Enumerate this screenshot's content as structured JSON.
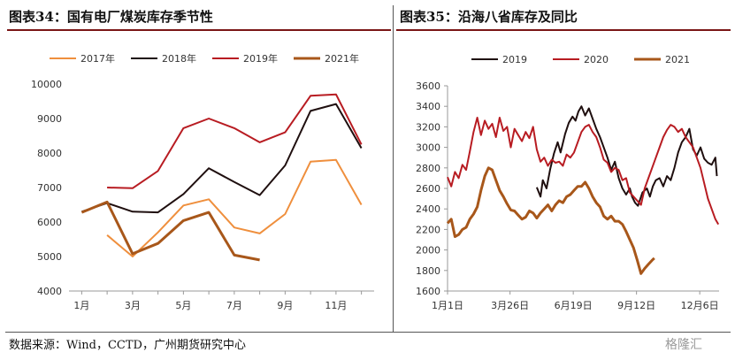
{
  "titles": {
    "left": "图表34：国有电厂煤炭库存季节性",
    "right": "图表35：沿海八省库存及同比"
  },
  "footer": {
    "source": "数据来源：Wind，CCTD，广州期货研究中心",
    "watermark": "格隆汇"
  },
  "chart_data": [
    {
      "type": "line",
      "title": "国有电厂煤炭库存季节性",
      "x": [
        1,
        2,
        3,
        4,
        5,
        6,
        7,
        8,
        9,
        10,
        11,
        12
      ],
      "xticks": [
        1,
        3,
        5,
        7,
        9,
        11
      ],
      "xtick_labels": [
        "1月",
        "3月",
        "5月",
        "7月",
        "9月",
        "11月"
      ],
      "ylim": [
        4000,
        10000
      ],
      "yticks": [
        4000,
        5000,
        6000,
        7000,
        8000,
        9000,
        10000
      ],
      "grid": false,
      "legend": "top",
      "colors": {
        "2017年": "#ef8f3d",
        "2018年": "#1f0f0f",
        "2019年": "#b81c22",
        "2021年": "#a8571a"
      },
      "series": [
        {
          "name": "2017年",
          "values": [
            null,
            5620,
            5000,
            5700,
            6480,
            6660,
            5840,
            5670,
            6230,
            7750,
            7800,
            6500
          ]
        },
        {
          "name": "2018年",
          "values": [
            6300,
            6550,
            6300,
            6280,
            6810,
            7560,
            7160,
            6780,
            7640,
            9220,
            9420,
            8140
          ]
        },
        {
          "name": "2019年",
          "values": [
            null,
            7000,
            6980,
            7480,
            8720,
            9000,
            8720,
            8310,
            8600,
            9660,
            9700,
            8250
          ]
        },
        {
          "name": "2021年",
          "values": [
            6280,
            6580,
            5080,
            5380,
            6040,
            6280,
            5040,
            4900,
            null,
            null,
            null,
            null
          ]
        }
      ]
    },
    {
      "type": "line",
      "title": "沿海八省库存及同比",
      "x_domain_days": [
        0,
        365
      ],
      "xtick_labels": [
        "1月1日",
        "3月26日",
        "6月19日",
        "9月12日",
        "12月6日"
      ],
      "xtick_days": [
        0,
        84,
        169,
        254,
        339
      ],
      "ylim": [
        1600,
        3600
      ],
      "yticks": [
        1600,
        1800,
        2000,
        2200,
        2400,
        2600,
        2800,
        3000,
        3200,
        3400,
        3600
      ],
      "grid": false,
      "legend": "top",
      "colors": {
        "2019": "#1f0f0f",
        "2020": "#b81c22",
        "2021": "#a8571a"
      },
      "series": [
        {
          "name": "2019",
          "x": [
            120,
            125,
            128,
            133,
            138,
            143,
            148,
            152,
            158,
            163,
            168,
            172,
            176,
            180,
            185,
            190,
            195,
            200,
            205,
            210,
            215,
            220,
            225,
            230,
            235,
            240,
            245,
            248,
            252,
            256,
            262,
            268,
            272,
            276,
            280,
            285,
            290,
            295,
            300,
            305,
            310,
            315,
            320,
            325,
            330,
            335,
            340,
            345,
            350,
            355,
            360,
            362
          ],
          "values": [
            2610,
            2520,
            2680,
            2600,
            2790,
            2940,
            3050,
            2950,
            3130,
            3240,
            3300,
            3260,
            3350,
            3400,
            3310,
            3380,
            3280,
            3180,
            3100,
            3000,
            2900,
            2780,
            2860,
            2700,
            2600,
            2540,
            2600,
            2520,
            2460,
            2430,
            2560,
            2600,
            2520,
            2620,
            2680,
            2700,
            2620,
            2720,
            2680,
            2800,
            2950,
            3050,
            3100,
            3180,
            2980,
            2920,
            3000,
            2890,
            2850,
            2830,
            2900,
            2720
          ]
        },
        {
          "name": "2020",
          "x": [
            0,
            5,
            10,
            15,
            20,
            25,
            30,
            35,
            40,
            45,
            50,
            55,
            60,
            65,
            70,
            75,
            80,
            85,
            90,
            95,
            100,
            105,
            110,
            115,
            120,
            125,
            130,
            135,
            140,
            145,
            150,
            155,
            160,
            165,
            170,
            175,
            180,
            185,
            190,
            195,
            200,
            205,
            210,
            215,
            220,
            225,
            230,
            235,
            240,
            245,
            250,
            255,
            260,
            265,
            270,
            275,
            280,
            285,
            290,
            295,
            300,
            305,
            310,
            315,
            320,
            325,
            330,
            335,
            340,
            345,
            350,
            355,
            360,
            364
          ],
          "values": [
            2710,
            2620,
            2760,
            2700,
            2830,
            2780,
            2960,
            3150,
            3290,
            3120,
            3260,
            3180,
            3230,
            3100,
            3290,
            3160,
            3200,
            3000,
            3180,
            3120,
            3060,
            3150,
            3090,
            3200,
            2980,
            2860,
            2900,
            2820,
            2880,
            2850,
            2860,
            2820,
            2930,
            2900,
            2950,
            3050,
            3150,
            3200,
            3220,
            3150,
            3100,
            3000,
            2880,
            2850,
            2760,
            2800,
            2780,
            2680,
            2700,
            2560,
            2520,
            2480,
            2440,
            2600,
            2700,
            2800,
            2900,
            3000,
            3100,
            3170,
            3220,
            3200,
            3150,
            3180,
            3100,
            3050,
            3000,
            2900,
            2800,
            2650,
            2500,
            2400,
            2300,
            2250
          ]
        },
        {
          "name": "2021",
          "x": [
            0,
            5,
            10,
            15,
            20,
            25,
            30,
            35,
            40,
            45,
            50,
            55,
            60,
            65,
            70,
            75,
            80,
            85,
            90,
            95,
            100,
            105,
            110,
            115,
            120,
            125,
            130,
            135,
            140,
            145,
            150,
            155,
            160,
            165,
            170,
            175,
            180,
            185,
            190,
            195,
            200,
            205,
            210,
            215,
            220,
            225,
            230,
            235,
            240,
            245,
            250,
            255,
            260,
            265,
            270,
            275,
            278
          ],
          "values": [
            2260,
            2300,
            2130,
            2150,
            2200,
            2220,
            2300,
            2350,
            2420,
            2580,
            2720,
            2800,
            2780,
            2680,
            2580,
            2520,
            2450,
            2390,
            2380,
            2340,
            2300,
            2320,
            2380,
            2360,
            2310,
            2360,
            2400,
            2440,
            2380,
            2440,
            2480,
            2460,
            2520,
            2540,
            2580,
            2620,
            2620,
            2660,
            2600,
            2520,
            2460,
            2420,
            2330,
            2300,
            2330,
            2280,
            2280,
            2250,
            2180,
            2100,
            2020,
            1900,
            1770,
            1820,
            1860,
            1900,
            1920
          ]
        }
      ]
    }
  ]
}
